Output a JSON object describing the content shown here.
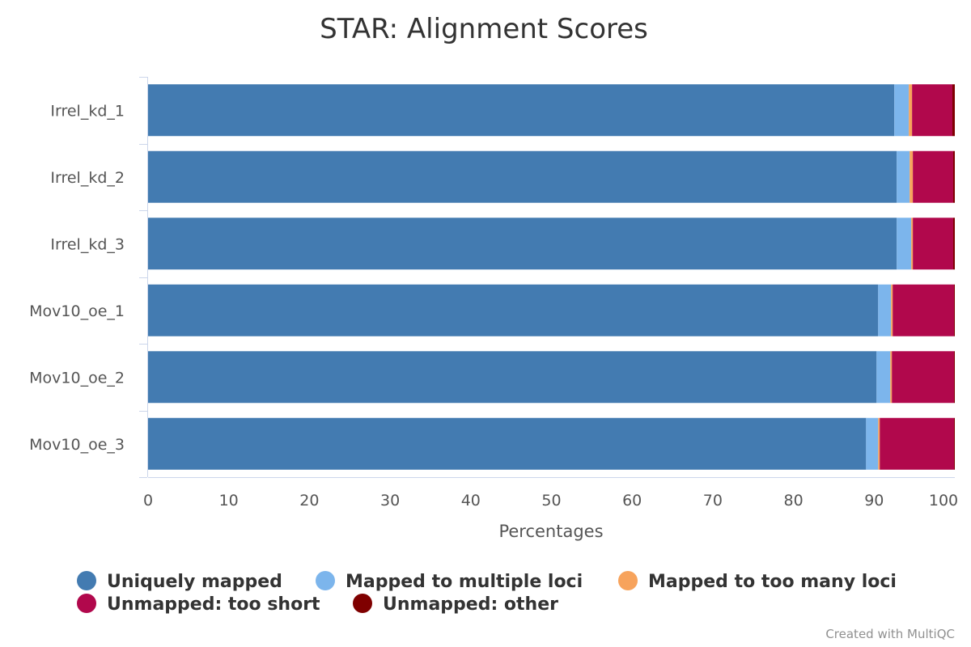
{
  "chart_data": {
    "type": "bar",
    "orientation": "horizontal",
    "stacked": true,
    "title": "STAR: Alignment Scores",
    "xlabel": "Percentages",
    "ylabel": "",
    "xlim": [
      0,
      100
    ],
    "x_ticks": [
      "0",
      "10",
      "20",
      "30",
      "40",
      "50",
      "60",
      "70",
      "80",
      "90",
      "100"
    ],
    "grid": false,
    "legend_position": "bottom",
    "categories": [
      "Irrel_kd_1",
      "Irrel_kd_2",
      "Irrel_kd_3",
      "Mov10_oe_1",
      "Mov10_oe_2",
      "Mov10_oe_3"
    ],
    "series": [
      {
        "name": "Uniquely mapped",
        "color": "#437bb1",
        "values": [
          92.5,
          92.8,
          92.8,
          90.5,
          90.3,
          89.0
        ]
      },
      {
        "name": "Mapped to multiple loci",
        "color": "#7cb5ec",
        "values": [
          1.8,
          1.6,
          1.8,
          1.6,
          1.7,
          1.5
        ]
      },
      {
        "name": "Mapped to too many loci",
        "color": "#f7a35c",
        "values": [
          0.4,
          0.4,
          0.2,
          0.2,
          0.2,
          0.2
        ]
      },
      {
        "name": "Unmapped: too short",
        "color": "#b1084c",
        "values": [
          5.0,
          5.0,
          5.0,
          7.6,
          7.7,
          9.2
        ]
      },
      {
        "name": "Unmapped: other",
        "color": "#7f0000",
        "values": [
          0.3,
          0.2,
          0.2,
          0.1,
          0.1,
          0.1
        ]
      }
    ]
  },
  "credit": "Created with MultiQC"
}
